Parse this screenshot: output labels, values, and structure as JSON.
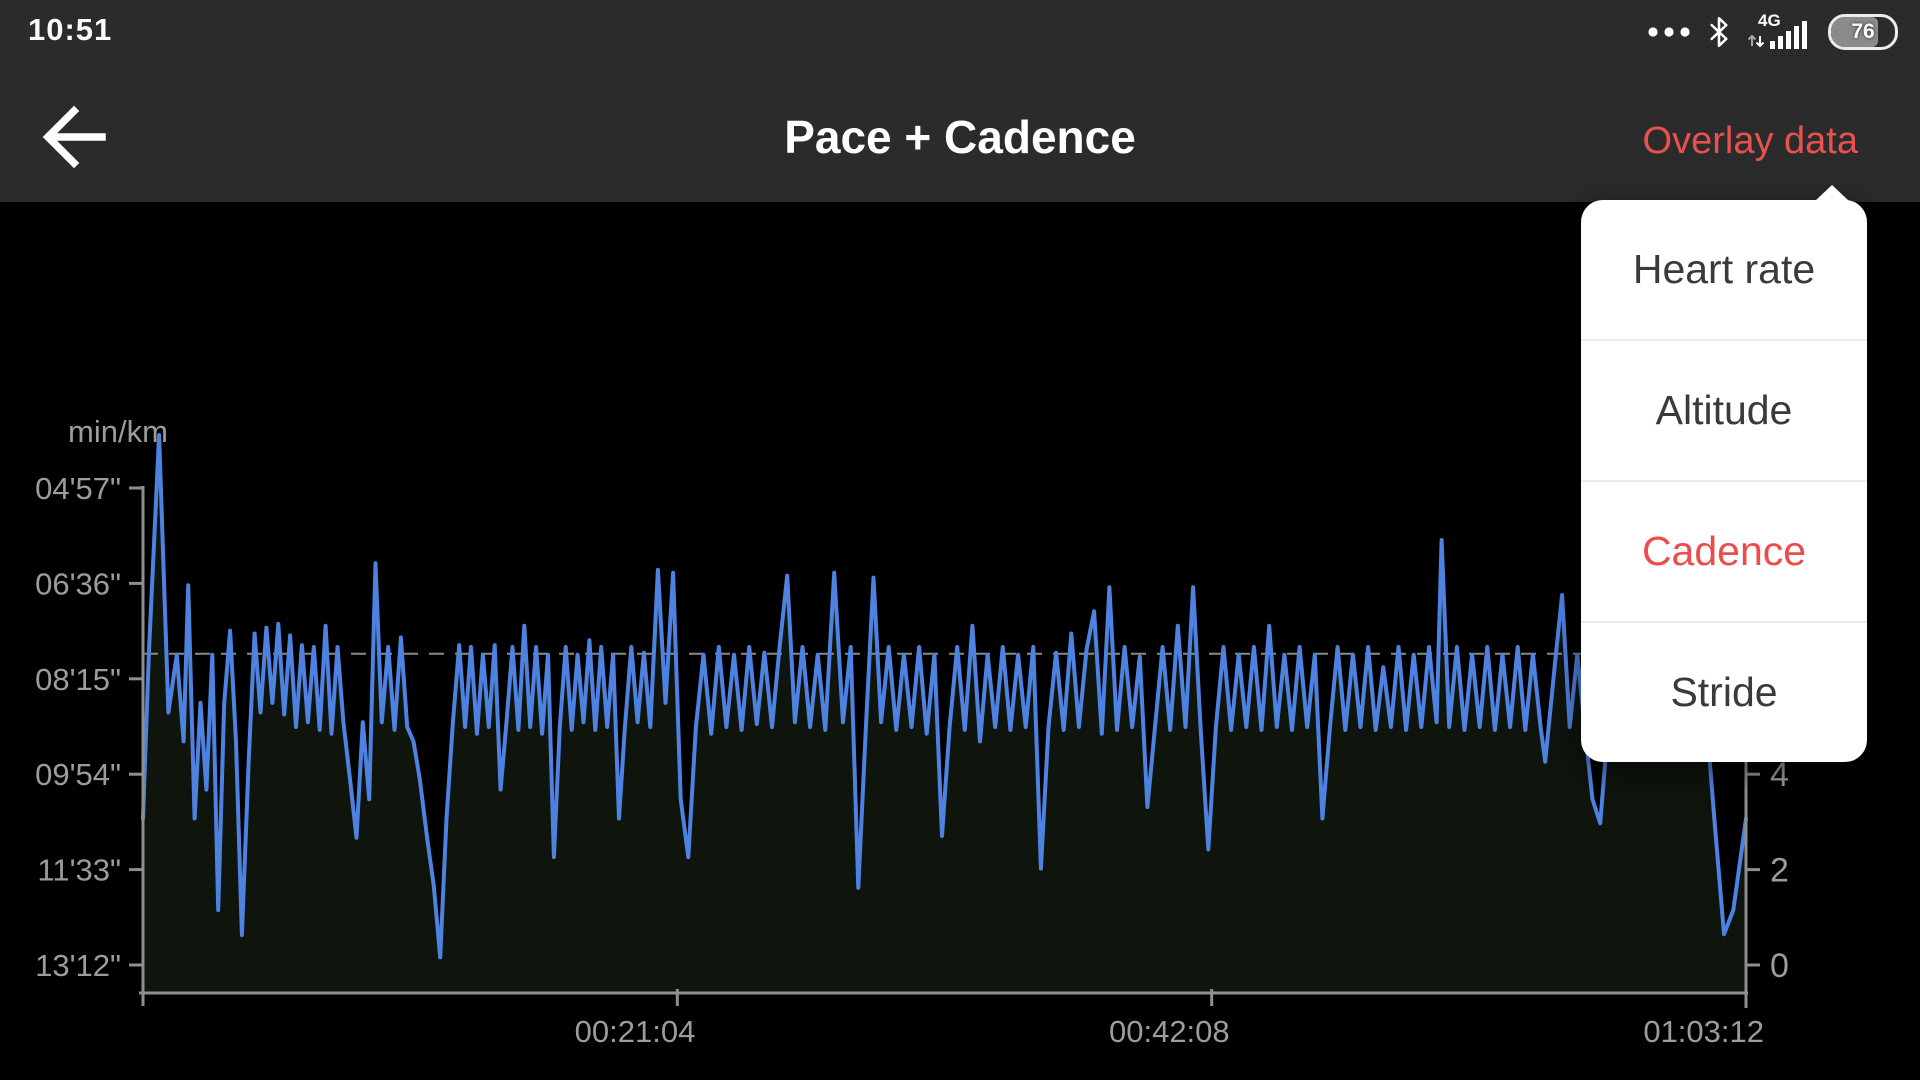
{
  "status_bar": {
    "time": "10:51",
    "network_label": "4G",
    "battery_percent": "76"
  },
  "header": {
    "title": "Pace + Cadence",
    "action_label": "Overlay data"
  },
  "overlay_menu": {
    "items": [
      {
        "label": "Heart rate",
        "active": false
      },
      {
        "label": "Altitude",
        "active": false
      },
      {
        "label": "Cadence",
        "active": true
      },
      {
        "label": "Stride",
        "active": false
      }
    ],
    "active_color": "#ee4c4c"
  },
  "colors": {
    "accent_red": "#e8524e",
    "pace_line_blue": "#4e82e0",
    "area_fill": "#0f140d",
    "axis_gray": "#8f8f8f",
    "label_gray": "#9c9c9c",
    "average_line_gray": "#8a8a8a"
  },
  "chart_data": {
    "type": "line",
    "title": "Pace + Cadence",
    "ylabel_left": "min/km",
    "y_axis_left": {
      "tick_labels": [
        "04'57\"",
        "06'36\"",
        "08'15\"",
        "09'54\"",
        "11'33\"",
        "13'12\""
      ],
      "tick_seconds": [
        297,
        396,
        495,
        594,
        693,
        792
      ],
      "unit": "min/km",
      "inverted": true
    },
    "y_axis_right": {
      "name": "Cadence",
      "ticks": [
        {
          "label": "4",
          "align_seconds": 594
        },
        {
          "label": "2",
          "align_seconds": 693
        },
        {
          "label": "0",
          "align_seconds": 792
        }
      ]
    },
    "x_axis": {
      "range_seconds": [
        0,
        3792
      ],
      "ticks": [
        {
          "label": "00:21:04",
          "seconds": 1264
        },
        {
          "label": "00:42:08",
          "seconds": 2528
        },
        {
          "label": "01:03:12",
          "seconds": 3792
        }
      ]
    },
    "average_pace_seconds": 469,
    "grid": false,
    "legend": "none",
    "series": [
      {
        "name": "Pace",
        "unit": "seconds per km",
        "color": "#4e82e0",
        "points": [
          [
            0,
            640
          ],
          [
            14,
            468
          ],
          [
            38,
            242
          ],
          [
            60,
            530
          ],
          [
            80,
            470
          ],
          [
            96,
            560
          ],
          [
            107,
            398
          ],
          [
            122,
            640
          ],
          [
            136,
            520
          ],
          [
            150,
            610
          ],
          [
            164,
            470
          ],
          [
            178,
            735
          ],
          [
            192,
            520
          ],
          [
            206,
            445
          ],
          [
            220,
            560
          ],
          [
            234,
            761
          ],
          [
            250,
            580
          ],
          [
            264,
            448
          ],
          [
            278,
            530
          ],
          [
            292,
            442
          ],
          [
            306,
            520
          ],
          [
            320,
            438
          ],
          [
            334,
            532
          ],
          [
            348,
            450
          ],
          [
            362,
            545
          ],
          [
            376,
            460
          ],
          [
            390,
            540
          ],
          [
            404,
            462
          ],
          [
            418,
            548
          ],
          [
            432,
            440
          ],
          [
            446,
            552
          ],
          [
            460,
            462
          ],
          [
            474,
            540
          ],
          [
            490,
            600
          ],
          [
            505,
            660
          ],
          [
            520,
            540
          ],
          [
            535,
            620
          ],
          [
            550,
            375
          ],
          [
            565,
            540
          ],
          [
            580,
            462
          ],
          [
            595,
            548
          ],
          [
            610,
            452
          ],
          [
            625,
            545
          ],
          [
            640,
            560
          ],
          [
            655,
            600
          ],
          [
            672,
            660
          ],
          [
            688,
            710
          ],
          [
            703,
            784
          ],
          [
            718,
            640
          ],
          [
            733,
            540
          ],
          [
            748,
            460
          ],
          [
            762,
            545
          ],
          [
            776,
            462
          ],
          [
            790,
            552
          ],
          [
            804,
            470
          ],
          [
            818,
            545
          ],
          [
            832,
            460
          ],
          [
            846,
            610
          ],
          [
            860,
            540
          ],
          [
            874,
            462
          ],
          [
            888,
            548
          ],
          [
            902,
            440
          ],
          [
            916,
            545
          ],
          [
            930,
            462
          ],
          [
            944,
            552
          ],
          [
            958,
            470
          ],
          [
            972,
            680
          ],
          [
            986,
            545
          ],
          [
            1000,
            462
          ],
          [
            1014,
            548
          ],
          [
            1028,
            470
          ],
          [
            1042,
            540
          ],
          [
            1056,
            455
          ],
          [
            1070,
            548
          ],
          [
            1084,
            462
          ],
          [
            1098,
            545
          ],
          [
            1112,
            470
          ],
          [
            1126,
            640
          ],
          [
            1140,
            545
          ],
          [
            1155,
            462
          ],
          [
            1170,
            540
          ],
          [
            1185,
            468
          ],
          [
            1200,
            545
          ],
          [
            1218,
            382
          ],
          [
            1236,
            520
          ],
          [
            1254,
            385
          ],
          [
            1272,
            620
          ],
          [
            1290,
            680
          ],
          [
            1308,
            545
          ],
          [
            1326,
            470
          ],
          [
            1344,
            552
          ],
          [
            1362,
            462
          ],
          [
            1380,
            545
          ],
          [
            1398,
            470
          ],
          [
            1416,
            548
          ],
          [
            1434,
            462
          ],
          [
            1452,
            542
          ],
          [
            1470,
            468
          ],
          [
            1488,
            545
          ],
          [
            1506,
            462
          ],
          [
            1524,
            388
          ],
          [
            1542,
            540
          ],
          [
            1560,
            462
          ],
          [
            1578,
            545
          ],
          [
            1596,
            470
          ],
          [
            1614,
            548
          ],
          [
            1635,
            385
          ],
          [
            1656,
            540
          ],
          [
            1674,
            462
          ],
          [
            1692,
            712
          ],
          [
            1710,
            545
          ],
          [
            1728,
            390
          ],
          [
            1746,
            540
          ],
          [
            1764,
            462
          ],
          [
            1782,
            548
          ],
          [
            1800,
            470
          ],
          [
            1818,
            545
          ],
          [
            1836,
            462
          ],
          [
            1854,
            552
          ],
          [
            1872,
            470
          ],
          [
            1890,
            658
          ],
          [
            1908,
            545
          ],
          [
            1926,
            462
          ],
          [
            1944,
            548
          ],
          [
            1962,
            440
          ],
          [
            1980,
            560
          ],
          [
            1998,
            470
          ],
          [
            2016,
            545
          ],
          [
            2034,
            462
          ],
          [
            2052,
            548
          ],
          [
            2070,
            470
          ],
          [
            2088,
            545
          ],
          [
            2106,
            462
          ],
          [
            2124,
            692
          ],
          [
            2142,
            545
          ],
          [
            2160,
            468
          ],
          [
            2178,
            548
          ],
          [
            2196,
            448
          ],
          [
            2214,
            545
          ],
          [
            2232,
            465
          ],
          [
            2250,
            425
          ],
          [
            2268,
            552
          ],
          [
            2286,
            400
          ],
          [
            2304,
            548
          ],
          [
            2322,
            462
          ],
          [
            2340,
            545
          ],
          [
            2358,
            472
          ],
          [
            2376,
            628
          ],
          [
            2394,
            545
          ],
          [
            2412,
            462
          ],
          [
            2430,
            548
          ],
          [
            2448,
            440
          ],
          [
            2466,
            545
          ],
          [
            2484,
            400
          ],
          [
            2502,
            548
          ],
          [
            2520,
            672
          ],
          [
            2538,
            545
          ],
          [
            2556,
            462
          ],
          [
            2574,
            548
          ],
          [
            2592,
            470
          ],
          [
            2610,
            545
          ],
          [
            2628,
            462
          ],
          [
            2646,
            548
          ],
          [
            2664,
            440
          ],
          [
            2682,
            545
          ],
          [
            2700,
            470
          ],
          [
            2718,
            548
          ],
          [
            2736,
            462
          ],
          [
            2754,
            545
          ],
          [
            2772,
            470
          ],
          [
            2790,
            640
          ],
          [
            2808,
            545
          ],
          [
            2826,
            462
          ],
          [
            2844,
            548
          ],
          [
            2862,
            470
          ],
          [
            2880,
            545
          ],
          [
            2898,
            462
          ],
          [
            2916,
            548
          ],
          [
            2934,
            483
          ],
          [
            2952,
            545
          ],
          [
            2970,
            462
          ],
          [
            2988,
            548
          ],
          [
            3006,
            470
          ],
          [
            3024,
            545
          ],
          [
            3042,
            462
          ],
          [
            3060,
            540
          ],
          [
            3072,
            351
          ],
          [
            3090,
            545
          ],
          [
            3108,
            462
          ],
          [
            3126,
            548
          ],
          [
            3144,
            470
          ],
          [
            3162,
            545
          ],
          [
            3180,
            462
          ],
          [
            3198,
            548
          ],
          [
            3216,
            470
          ],
          [
            3234,
            545
          ],
          [
            3252,
            462
          ],
          [
            3270,
            548
          ],
          [
            3288,
            470
          ],
          [
            3306,
            545
          ],
          [
            3317,
            581
          ],
          [
            3340,
            480
          ],
          [
            3357,
            408
          ],
          [
            3375,
            545
          ],
          [
            3393,
            470
          ],
          [
            3411,
            548
          ],
          [
            3429,
            620
          ],
          [
            3447,
            645
          ],
          [
            3465,
            548
          ],
          [
            3483,
            470
          ],
          [
            3501,
            545
          ],
          [
            3519,
            462
          ],
          [
            3537,
            548
          ],
          [
            3555,
            470
          ],
          [
            3573,
            545
          ],
          [
            3591,
            462
          ],
          [
            3609,
            548
          ],
          [
            3627,
            470
          ],
          [
            3645,
            545
          ],
          [
            3663,
            462
          ],
          [
            3681,
            548
          ],
          [
            3699,
            540
          ],
          [
            3717,
            640
          ],
          [
            3740,
            760
          ],
          [
            3762,
            735
          ],
          [
            3792,
            640
          ]
        ]
      }
    ]
  }
}
